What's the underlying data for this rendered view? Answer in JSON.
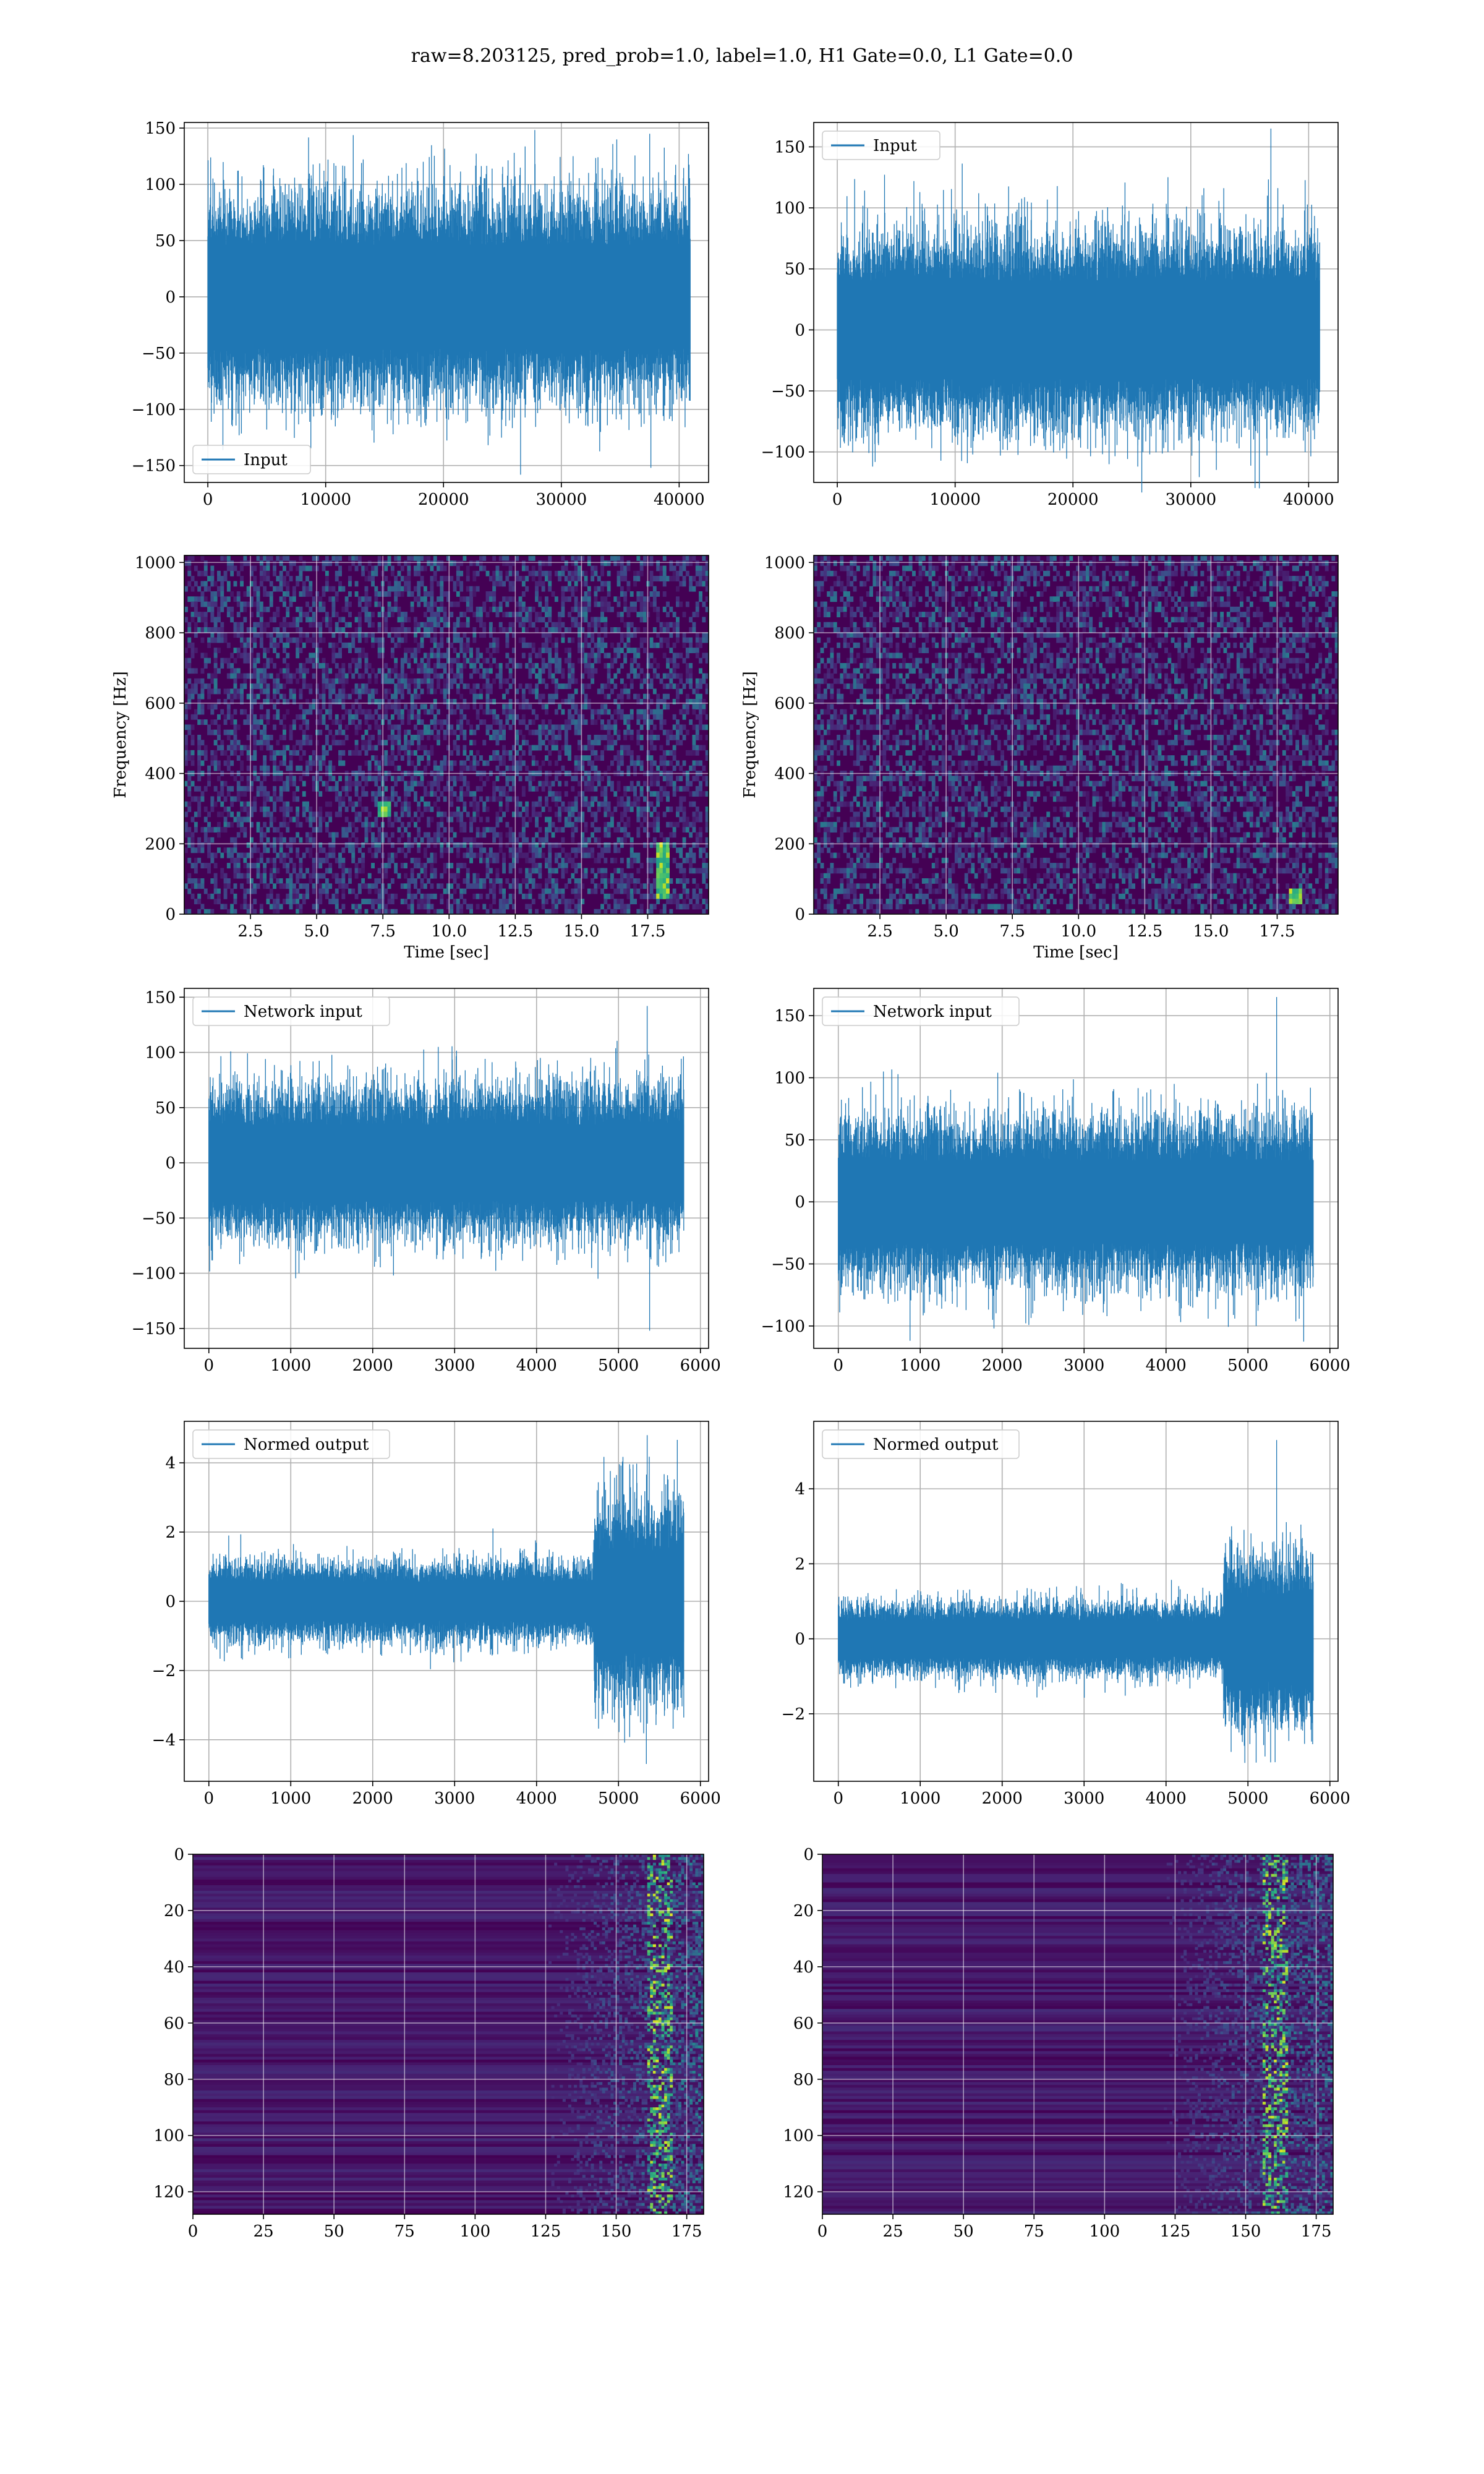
{
  "figure_title": "raw=8.203125, pred_prob=1.0, label=1.0, H1 Gate=0.0, L1 Gate=0.0",
  "colors": {
    "line": "#1f77b4",
    "grid": "#b0b0b0",
    "viridis_low": "#440154",
    "viridis_high": "#fde725"
  },
  "chart_data": [
    {
      "id": "input-left",
      "type": "line",
      "xlim": [
        -2000,
        42500
      ],
      "ylim": [
        -165,
        155
      ],
      "xticks": [
        0,
        10000,
        20000,
        30000,
        40000
      ],
      "xticklabels": [
        "0",
        "10000",
        "20000",
        "30000",
        "40000"
      ],
      "yticks": [
        -150,
        -100,
        -50,
        0,
        50,
        100,
        150
      ],
      "yticklabels": [
        "−150",
        "−100",
        "−50",
        "0",
        "50",
        "100",
        "150"
      ],
      "xlabel": "",
      "ylabel": "",
      "grid": true,
      "legend_position": "lower-left",
      "series": [
        {
          "name": "Input",
          "n": 40960,
          "envelope": 80,
          "spikes": [
            [
              37500,
              145
            ],
            [
              37600,
              -152
            ],
            [
              26000,
              128
            ],
            [
              10200,
              122
            ],
            [
              5000,
              -118
            ],
            [
              31000,
              125
            ]
          ]
        }
      ]
    },
    {
      "id": "input-right",
      "type": "line",
      "xlim": [
        -2000,
        42500
      ],
      "ylim": [
        -125,
        170
      ],
      "xticks": [
        0,
        10000,
        20000,
        30000,
        40000
      ],
      "xticklabels": [
        "0",
        "10000",
        "20000",
        "30000",
        "40000"
      ],
      "yticks": [
        -100,
        -50,
        0,
        50,
        100,
        150
      ],
      "yticklabels": [
        "−100",
        "−50",
        "0",
        "50",
        "100",
        "150"
      ],
      "xlabel": "",
      "ylabel": "",
      "grid": true,
      "legend_position": "upper-left",
      "series": [
        {
          "name": "Input",
          "n": 40960,
          "envelope": 70,
          "spikes": [
            [
              36800,
              165
            ],
            [
              6500,
              122
            ],
            [
              25500,
              -112
            ],
            [
              12000,
              112
            ],
            [
              3000,
              -112
            ],
            [
              36500,
              110
            ]
          ]
        }
      ]
    },
    {
      "id": "spectrogram-left",
      "type": "heatmap",
      "xlim": [
        0,
        19.8
      ],
      "ylim": [
        0,
        1020
      ],
      "xticks": [
        2.5,
        5.0,
        7.5,
        10.0,
        12.5,
        15.0,
        17.5
      ],
      "xticklabels": [
        "2.5",
        "5.0",
        "7.5",
        "10.0",
        "12.5",
        "15.0",
        "17.5"
      ],
      "yticks": [
        0,
        200,
        400,
        600,
        800,
        1000
      ],
      "yticklabels": [
        "0",
        "200",
        "400",
        "600",
        "800",
        "1000"
      ],
      "xlabel": "Time [sec]",
      "ylabel": "Frequency [Hz]",
      "grid": true,
      "colormap": "viridis",
      "hotspots": [
        {
          "t": 18.1,
          "f": [
            50,
            200
          ]
        },
        {
          "t": 7.5,
          "f": [
            280,
            320
          ]
        }
      ]
    },
    {
      "id": "spectrogram-right",
      "type": "heatmap",
      "xlim": [
        0,
        19.8
      ],
      "ylim": [
        0,
        1020
      ],
      "xticks": [
        2.5,
        5.0,
        7.5,
        10.0,
        12.5,
        15.0,
        17.5
      ],
      "xticklabels": [
        "2.5",
        "5.0",
        "7.5",
        "10.0",
        "12.5",
        "15.0",
        "17.5"
      ],
      "yticks": [
        0,
        200,
        400,
        600,
        800,
        1000
      ],
      "yticklabels": [
        "0",
        "200",
        "400",
        "600",
        "800",
        "1000"
      ],
      "xlabel": "Time [sec]",
      "ylabel": "Frequency [Hz]",
      "grid": true,
      "colormap": "viridis",
      "hotspots": [
        {
          "t": 18.2,
          "f": [
            30,
            80
          ]
        }
      ]
    },
    {
      "id": "network-input-left",
      "type": "line",
      "xlim": [
        -300,
        6100
      ],
      "ylim": [
        -168,
        158
      ],
      "xticks": [
        0,
        1000,
        2000,
        3000,
        4000,
        5000,
        6000
      ],
      "xticklabels": [
        "0",
        "1000",
        "2000",
        "3000",
        "4000",
        "5000",
        "6000"
      ],
      "yticks": [
        -150,
        -100,
        -50,
        0,
        50,
        100,
        150
      ],
      "yticklabels": [
        "−150",
        "−100",
        "−50",
        "0",
        "50",
        "100",
        "150"
      ],
      "xlabel": "",
      "ylabel": "",
      "grid": true,
      "legend_position": "upper-left",
      "series": [
        {
          "name": "Network input",
          "n": 5800,
          "envelope": 60,
          "spikes": [
            [
              5350,
              142
            ],
            [
              5380,
              -152
            ],
            [
              4750,
              -105
            ],
            [
              2800,
              105
            ],
            [
              1100,
              -100
            ]
          ]
        }
      ]
    },
    {
      "id": "network-input-right",
      "type": "line",
      "xlim": [
        -300,
        6100
      ],
      "ylim": [
        -118,
        172
      ],
      "xticks": [
        0,
        1000,
        2000,
        3000,
        4000,
        5000,
        6000
      ],
      "xticklabels": [
        "0",
        "1000",
        "2000",
        "3000",
        "4000",
        "5000",
        "6000"
      ],
      "yticks": [
        -100,
        -50,
        0,
        50,
        100,
        150
      ],
      "yticklabels": [
        "−100",
        "−50",
        "0",
        "50",
        "100",
        "150"
      ],
      "xlabel": "",
      "ylabel": "",
      "grid": true,
      "legend_position": "upper-left",
      "series": [
        {
          "name": "Network input",
          "n": 5800,
          "envelope": 58,
          "spikes": [
            [
              5350,
              165
            ],
            [
              1900,
              -102
            ],
            [
              5100,
              -100
            ],
            [
              4100,
              95
            ]
          ]
        }
      ]
    },
    {
      "id": "normed-output-left",
      "type": "line",
      "xlim": [
        -300,
        6100
      ],
      "ylim": [
        -5.2,
        5.2
      ],
      "xticks": [
        0,
        1000,
        2000,
        3000,
        4000,
        5000,
        6000
      ],
      "xticklabels": [
        "0",
        "1000",
        "2000",
        "3000",
        "4000",
        "5000",
        "6000"
      ],
      "yticks": [
        -4,
        -2,
        0,
        2,
        4
      ],
      "yticklabels": [
        "−4",
        "−2",
        "0",
        "2",
        "4"
      ],
      "xlabel": "",
      "ylabel": "",
      "grid": true,
      "legend_position": "upper-left",
      "series": [
        {
          "name": "Normed output",
          "n": 5800,
          "envelope": 1.0,
          "burst": [
            4700,
            5800,
            2.6
          ],
          "spikes": [
            [
              5350,
              4.8
            ],
            [
              5340,
              -4.7
            ],
            [
              4800,
              -3.4
            ]
          ]
        }
      ]
    },
    {
      "id": "normed-output-right",
      "type": "line",
      "xlim": [
        -300,
        6100
      ],
      "ylim": [
        -3.8,
        5.8
      ],
      "xticks": [
        0,
        1000,
        2000,
        3000,
        4000,
        5000,
        6000
      ],
      "xticklabels": [
        "0",
        "1000",
        "2000",
        "3000",
        "4000",
        "5000",
        "6000"
      ],
      "yticks": [
        -2,
        0,
        2,
        4
      ],
      "yticklabels": [
        "−2",
        "0",
        "2",
        "4"
      ],
      "xlabel": "",
      "ylabel": "",
      "grid": true,
      "legend_position": "upper-left",
      "series": [
        {
          "name": "Normed output",
          "n": 5800,
          "envelope": 0.85,
          "burst": [
            4700,
            5800,
            2.0
          ],
          "spikes": [
            [
              5350,
              5.3
            ],
            [
              5100,
              -3.3
            ],
            [
              4800,
              3.0
            ]
          ]
        }
      ]
    },
    {
      "id": "feature-map-left",
      "type": "heatmap",
      "xlim": [
        0,
        181
      ],
      "ylim": [
        128,
        0
      ],
      "xticks": [
        0,
        25,
        50,
        75,
        100,
        125,
        150,
        175
      ],
      "xticklabels": [
        "0",
        "25",
        "50",
        "75",
        "100",
        "125",
        "150",
        "175"
      ],
      "yticks": [
        0,
        20,
        40,
        60,
        80,
        100,
        120
      ],
      "yticklabels": [
        "0",
        "20",
        "40",
        "60",
        "80",
        "100",
        "120"
      ],
      "xlabel": "",
      "ylabel": "",
      "grid": true,
      "colormap": "viridis",
      "active_from": 125,
      "hot_column": 165
    },
    {
      "id": "feature-map-right",
      "type": "heatmap",
      "xlim": [
        0,
        181
      ],
      "ylim": [
        128,
        0
      ],
      "xticks": [
        0,
        25,
        50,
        75,
        100,
        125,
        150,
        175
      ],
      "xticklabels": [
        "0",
        "25",
        "50",
        "75",
        "100",
        "125",
        "150",
        "175"
      ],
      "yticks": [
        0,
        20,
        40,
        60,
        80,
        100,
        120
      ],
      "yticklabels": [
        "0",
        "20",
        "40",
        "60",
        "80",
        "100",
        "120"
      ],
      "xlabel": "",
      "ylabel": "",
      "grid": true,
      "colormap": "viridis",
      "active_from": 120,
      "hot_column": 160
    }
  ]
}
